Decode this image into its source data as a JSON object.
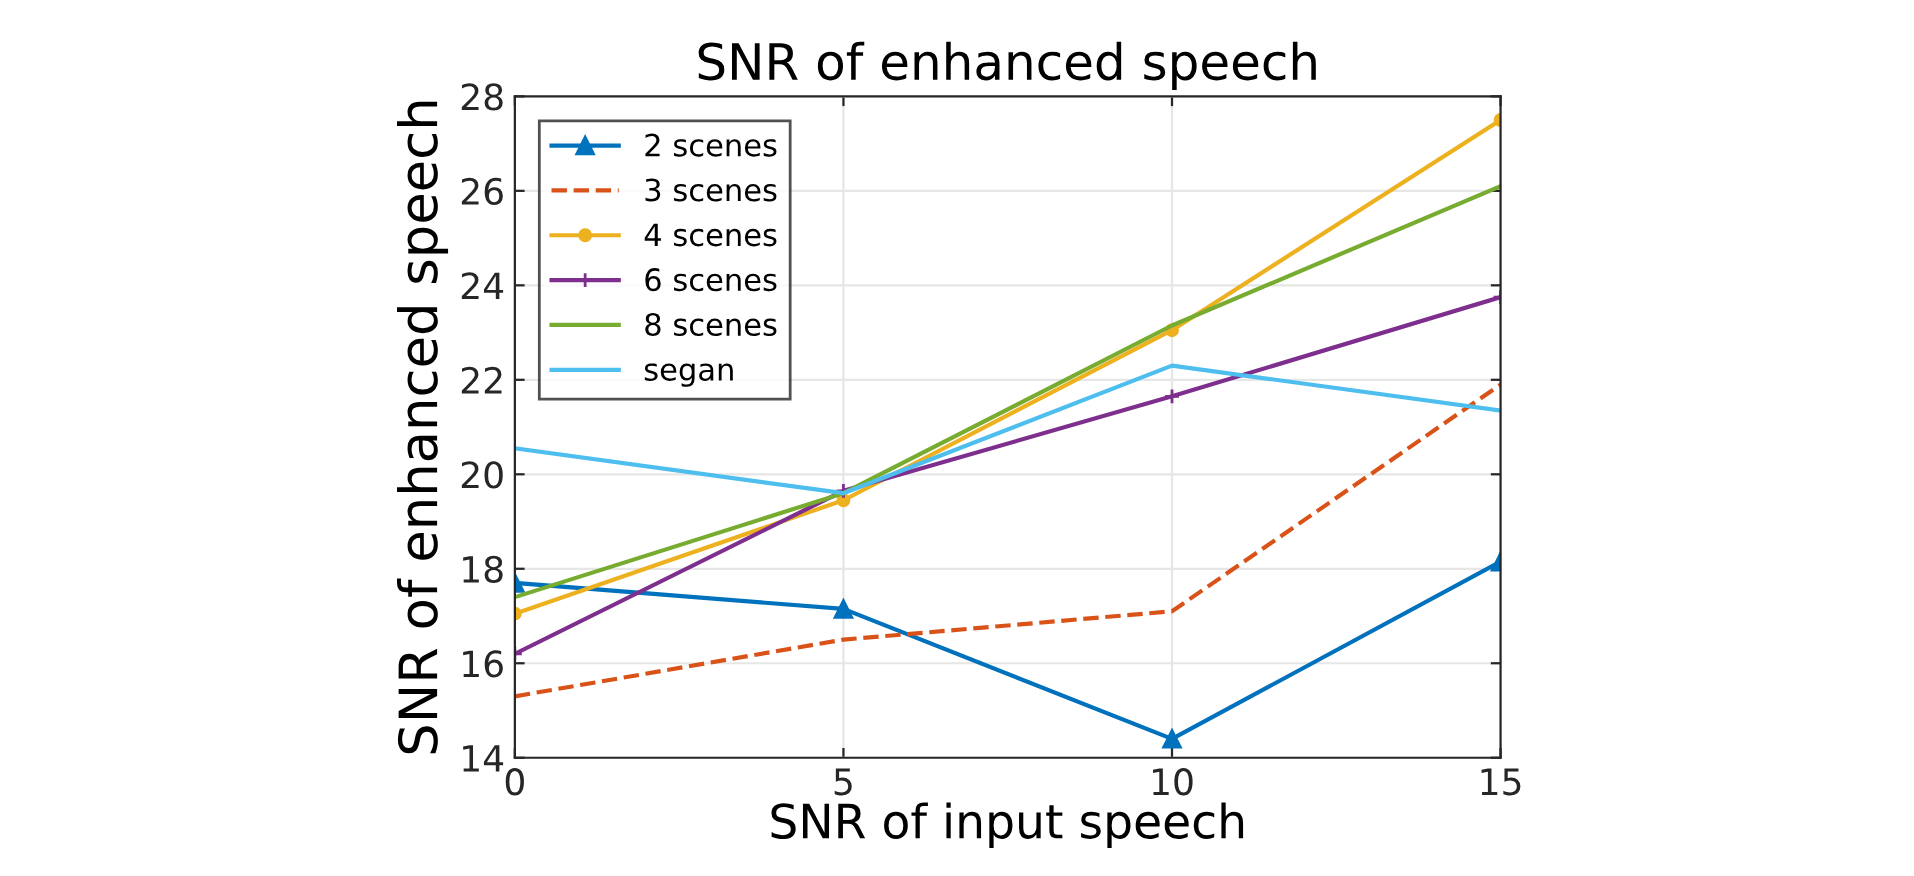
{
  "chart_data": {
    "type": "line",
    "title": "SNR of enhanced speech",
    "xlabel": "SNR of input speech",
    "ylabel": "SNR of enhanced speech",
    "x": [
      0,
      5,
      10,
      15
    ],
    "xlim": [
      0,
      15
    ],
    "xticks": [
      0,
      5,
      10,
      15
    ],
    "ylim": [
      14,
      28
    ],
    "yticks": [
      14,
      16,
      18,
      20,
      22,
      24,
      26,
      28
    ],
    "grid": true,
    "legend": "top left",
    "series": [
      {
        "name": "2 scenes",
        "color": "#0072bd",
        "marker": "triangle",
        "line_style": "solid",
        "values": [
          17.7,
          17.15,
          14.4,
          18.15
        ]
      },
      {
        "name": "3 scenes",
        "color": "#d95319",
        "marker": "none",
        "line_style": "dashed",
        "values": [
          15.3,
          16.5,
          17.1,
          21.9
        ]
      },
      {
        "name": "4 scenes",
        "color": "#edb120",
        "marker": "circle",
        "line_style": "solid",
        "values": [
          17.05,
          19.45,
          23.05,
          27.5
        ]
      },
      {
        "name": "6 scenes",
        "color": "#7e2f8e",
        "marker": "cross",
        "line_style": "solid",
        "values": [
          16.2,
          19.65,
          21.65,
          23.75
        ]
      },
      {
        "name": "8 scenes",
        "color": "#77ac30",
        "marker": "none",
        "line_style": "solid",
        "values": [
          17.4,
          19.6,
          23.15,
          26.1
        ]
      },
      {
        "name": "segan",
        "color": "#4dbeee",
        "marker": "none",
        "line_style": "solid",
        "values": [
          20.55,
          19.6,
          22.3,
          21.35
        ]
      }
    ]
  }
}
